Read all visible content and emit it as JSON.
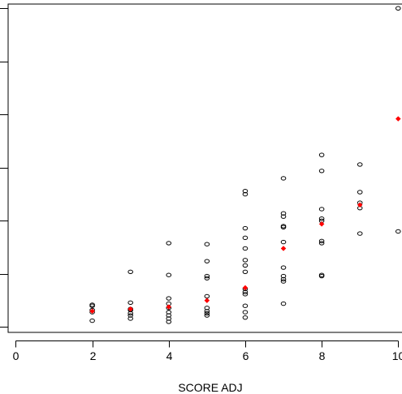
{
  "chart_data": {
    "type": "scatter",
    "title": "",
    "xlabel": "SCORE ADJ",
    "ylabel": "",
    "xlim": [
      -0.2,
      10.1
    ],
    "ylim": [
      -0.0005,
      0.0304
    ],
    "x_ticks": [
      0,
      2,
      4,
      6,
      8,
      10
    ],
    "x_tick_labels": [
      "0",
      "2",
      "4",
      "6",
      "8",
      "10"
    ],
    "y_ticks": [
      0,
      0.005,
      0.01,
      0.015,
      0.02,
      0.025,
      0.03
    ],
    "grid": false,
    "legend": "none",
    "series": [
      {
        "marker": "open-circle",
        "color": "#000000",
        "points": [
          {
            "x": 2,
            "y": 0.0021
          },
          {
            "x": 2,
            "y": 0.002
          },
          {
            "x": 2,
            "y": 0.0016
          },
          {
            "x": 2,
            "y": 0.0014
          },
          {
            "x": 2,
            "y": 0.0006
          },
          {
            "x": 3,
            "y": 0.0052
          },
          {
            "x": 3,
            "y": 0.0023
          },
          {
            "x": 3,
            "y": 0.0017
          },
          {
            "x": 3,
            "y": 0.0016
          },
          {
            "x": 3,
            "y": 0.0013
          },
          {
            "x": 3,
            "y": 0.0011
          },
          {
            "x": 3,
            "y": 0.0008
          },
          {
            "x": 4,
            "y": 0.0079
          },
          {
            "x": 4,
            "y": 0.0049
          },
          {
            "x": 4,
            "y": 0.0027
          },
          {
            "x": 4,
            "y": 0.0022
          },
          {
            "x": 4,
            "y": 0.0018
          },
          {
            "x": 4,
            "y": 0.0014
          },
          {
            "x": 4,
            "y": 0.0011
          },
          {
            "x": 4,
            "y": 0.0008
          },
          {
            "x": 4,
            "y": 0.0005
          },
          {
            "x": 5,
            "y": 0.0078
          },
          {
            "x": 5,
            "y": 0.0062
          },
          {
            "x": 5,
            "y": 0.0048
          },
          {
            "x": 5,
            "y": 0.0046
          },
          {
            "x": 5,
            "y": 0.0029
          },
          {
            "x": 5,
            "y": 0.0018
          },
          {
            "x": 5,
            "y": 0.0015
          },
          {
            "x": 5,
            "y": 0.0013
          },
          {
            "x": 5,
            "y": 0.0011
          },
          {
            "x": 6,
            "y": 0.0128
          },
          {
            "x": 6,
            "y": 0.0125
          },
          {
            "x": 6,
            "y": 0.0093
          },
          {
            "x": 6,
            "y": 0.0084
          },
          {
            "x": 6,
            "y": 0.0074
          },
          {
            "x": 6,
            "y": 0.0063
          },
          {
            "x": 6,
            "y": 0.0058
          },
          {
            "x": 6,
            "y": 0.0052
          },
          {
            "x": 6,
            "y": 0.0036
          },
          {
            "x": 6,
            "y": 0.0033
          },
          {
            "x": 6,
            "y": 0.0031
          },
          {
            "x": 6,
            "y": 0.002
          },
          {
            "x": 6,
            "y": 0.0014
          },
          {
            "x": 6,
            "y": 0.0009
          },
          {
            "x": 7,
            "y": 0.014
          },
          {
            "x": 7,
            "y": 0.0107
          },
          {
            "x": 7,
            "y": 0.0104
          },
          {
            "x": 7,
            "y": 0.0095
          },
          {
            "x": 7,
            "y": 0.0094
          },
          {
            "x": 7,
            "y": 0.008
          },
          {
            "x": 7,
            "y": 0.0056
          },
          {
            "x": 7,
            "y": 0.0048
          },
          {
            "x": 7,
            "y": 0.0045
          },
          {
            "x": 7,
            "y": 0.0043
          },
          {
            "x": 7,
            "y": 0.0022
          },
          {
            "x": 8,
            "y": 0.0162
          },
          {
            "x": 8,
            "y": 0.0147
          },
          {
            "x": 8,
            "y": 0.0111
          },
          {
            "x": 8,
            "y": 0.0102
          },
          {
            "x": 8,
            "y": 0.01
          },
          {
            "x": 8,
            "y": 0.0081
          },
          {
            "x": 8,
            "y": 0.0079
          },
          {
            "x": 8,
            "y": 0.0049
          },
          {
            "x": 8,
            "y": 0.0048
          },
          {
            "x": 9,
            "y": 0.0153
          },
          {
            "x": 9,
            "y": 0.0127
          },
          {
            "x": 9,
            "y": 0.0117
          },
          {
            "x": 9,
            "y": 0.0112
          },
          {
            "x": 9,
            "y": 0.0088
          },
          {
            "x": 10,
            "y": 0.03
          },
          {
            "x": 10,
            "y": 0.009
          }
        ]
      },
      {
        "marker": "filled-diamond",
        "color": "#ff0000",
        "points": [
          {
            "x": 2,
            "y": 0.0015
          },
          {
            "x": 3,
            "y": 0.0017
          },
          {
            "x": 4,
            "y": 0.0019
          },
          {
            "x": 5,
            "y": 0.0025
          },
          {
            "x": 6,
            "y": 0.0037
          },
          {
            "x": 7,
            "y": 0.0074
          },
          {
            "x": 8,
            "y": 0.0097
          },
          {
            "x": 9,
            "y": 0.0115
          },
          {
            "x": 10,
            "y": 0.0196
          }
        ]
      }
    ]
  }
}
